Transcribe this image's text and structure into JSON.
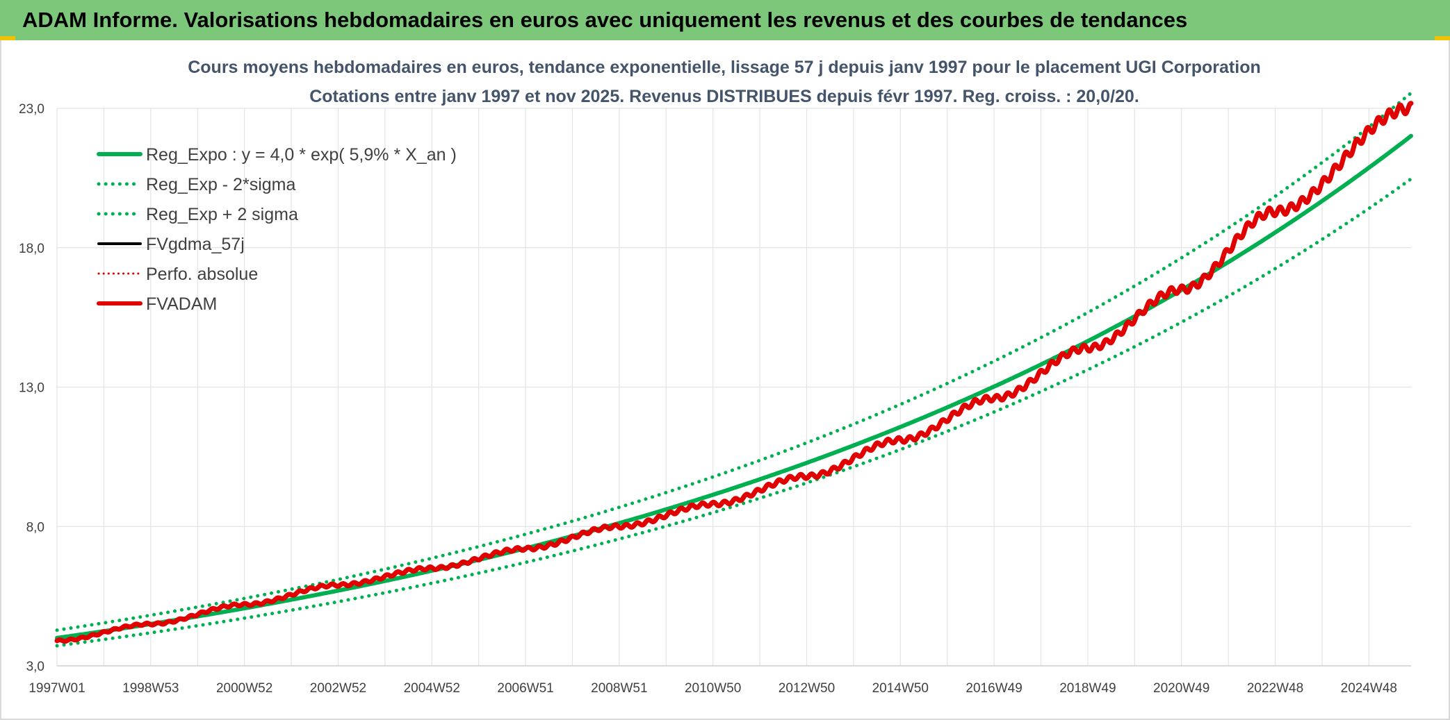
{
  "header": {
    "title": "ADAM Informe. Valorisations hebdomadaires en euros avec uniquement les revenus et des courbes de tendances"
  },
  "chart_data": {
    "type": "line",
    "title": "Cours moyens hebdomadaires en euros, tendance exponentielle, lissage 57 j depuis janv 1997 pour le placement UGI Corporation",
    "subtitle": "Cotations entre janv 1997 et nov 2025. Revenus DISTRIBUES depuis févr 1997. Reg. croiss. : 20,0/20.",
    "xlabel": "",
    "ylabel": "",
    "ylim": [
      3.0,
      23.0
    ],
    "yticks": [
      "3,0",
      "8,0",
      "13,0",
      "18,0",
      "23,0"
    ],
    "ytick_values": [
      3,
      8,
      13,
      18,
      23
    ],
    "x_range": [
      1997.0,
      2025.9
    ],
    "xticks": [
      "1997W01",
      "1998W53",
      "2000W52",
      "2002W52",
      "2004W52",
      "2006W51",
      "2008W51",
      "2010W50",
      "2012W50",
      "2014W50",
      "2016W49",
      "2018W49",
      "2020W49",
      "2022W48",
      "2024W48"
    ],
    "xtick_years": [
      1997.0,
      1999.0,
      2001.0,
      2003.0,
      2005.0,
      2007.0,
      2009.0,
      2011.0,
      2013.0,
      2015.0,
      2017.0,
      2019.0,
      2021.0,
      2023.0,
      2025.0
    ],
    "grid": true,
    "legend_position": "top-left",
    "regression": {
      "a": 4.0,
      "rate": 0.059,
      "sigma_factor": 0.07
    },
    "series": [
      {
        "name": "Reg_Expo : y = 4,0 * exp( 5,9% *  X_an )",
        "color": "#00b050",
        "style": "solid",
        "x": [
          1997,
          2001,
          2005,
          2009,
          2013,
          2017,
          2021,
          2025.9
        ],
        "values": [
          4.0,
          5.1,
          6.3,
          8.1,
          10.2,
          12.9,
          16.3,
          22.1
        ]
      },
      {
        "name": "Reg_Exp - 2*sigma",
        "color": "#00b050",
        "style": "dotted",
        "x": [
          1997,
          2001,
          2005,
          2009,
          2013,
          2017,
          2021,
          2025.9
        ],
        "values": [
          3.7,
          4.7,
          5.9,
          7.5,
          9.5,
          12.0,
          15.2,
          20.9
        ]
      },
      {
        "name": "Reg_Exp + 2 sigma",
        "color": "#00b050",
        "style": "dotted",
        "x": [
          1997,
          2001,
          2005,
          2009,
          2013,
          2017,
          2021,
          2025.9
        ],
        "values": [
          4.3,
          5.4,
          6.8,
          8.6,
          10.9,
          13.8,
          17.4,
          23.4
        ]
      },
      {
        "name": "FVgdma_57j",
        "color": "#000000",
        "style": "solid",
        "x": [
          1997,
          1999,
          2001,
          2003,
          2005,
          2007,
          2009,
          2011,
          2013,
          2015,
          2017,
          2019,
          2021,
          2023,
          2025.9
        ],
        "values": [
          3.9,
          4.5,
          5.2,
          5.9,
          6.5,
          7.2,
          8.0,
          8.8,
          9.8,
          11.1,
          12.6,
          14.4,
          16.5,
          19.3,
          23.0
        ]
      },
      {
        "name": "Perfo. absolue",
        "color": "#e00000",
        "style": "dotted",
        "x": [
          1997,
          1999,
          2001,
          2003,
          2005,
          2007,
          2009,
          2011,
          2013,
          2015,
          2017,
          2019,
          2021,
          2023,
          2025.9
        ],
        "values": [
          3.9,
          4.5,
          5.2,
          5.9,
          6.5,
          7.2,
          8.0,
          8.8,
          9.8,
          11.1,
          12.6,
          14.4,
          16.5,
          19.3,
          23.0
        ]
      },
      {
        "name": "FVADAM",
        "color": "#e00000",
        "style": "solid",
        "x": [
          1997,
          1999,
          2001,
          2003,
          2005,
          2007,
          2009,
          2011,
          2013,
          2015,
          2017,
          2019,
          2021,
          2023,
          2025.9
        ],
        "values": [
          3.9,
          4.5,
          5.2,
          5.9,
          6.5,
          7.2,
          8.0,
          8.8,
          9.8,
          11.1,
          12.6,
          14.4,
          16.5,
          19.3,
          23.0
        ]
      }
    ]
  }
}
